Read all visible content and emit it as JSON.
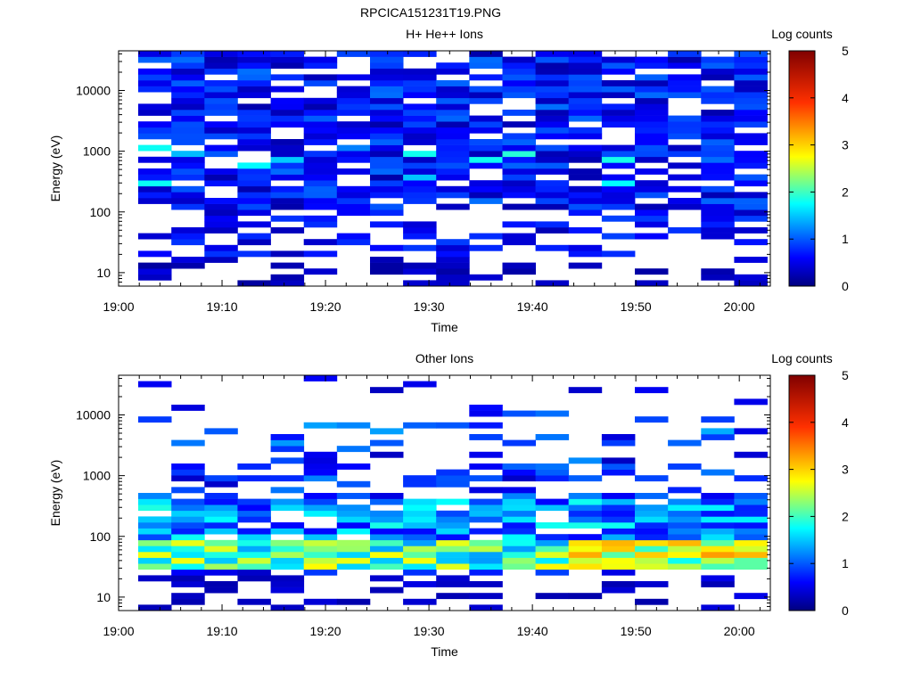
{
  "page_title": "RPCICA151231T19.PNG",
  "chart_data": [
    {
      "type": "heatmap",
      "title": "H+ He++ Ions",
      "xlabel": "Time",
      "ylabel": "Energy (eV)",
      "x_unit": "minutes after 19:00",
      "x_range": [
        0,
        63
      ],
      "x_ticks": [
        {
          "value": 0,
          "label": "19:00"
        },
        {
          "value": 10,
          "label": "19:10"
        },
        {
          "value": 20,
          "label": "19:20"
        },
        {
          "value": 30,
          "label": "19:30"
        },
        {
          "value": 40,
          "label": "19:40"
        },
        {
          "value": 50,
          "label": "19:50"
        },
        {
          "value": 60,
          "label": "20:00"
        }
      ],
      "y_scale": "log",
      "y_range": [
        6,
        45000
      ],
      "y_ticks": [
        {
          "value": 10,
          "label": "10"
        },
        {
          "value": 100,
          "label": "100"
        },
        {
          "value": 1000,
          "label": "1000"
        },
        {
          "value": 10000,
          "label": "10000"
        }
      ],
      "colorbar": {
        "label": "Log counts",
        "min": 0,
        "max": 5,
        "ticks": [
          "0",
          "1",
          "2",
          "3",
          "4",
          "5"
        ]
      },
      "time_bins_start": [
        1.9,
        5.1,
        8.3,
        11.5,
        14.7,
        17.9,
        21.1,
        24.3,
        27.5,
        30.7,
        33.9,
        37.1,
        40.3,
        43.5,
        46.7,
        49.9,
        53.1,
        56.3,
        59.5
      ],
      "time_bin_width": 3.2,
      "energy_bin_count": 40,
      "energy_min": 6,
      "energy_max": 45000,
      "grid": false,
      "counts_description": "broadband low-level counts (0.2-1.5 log counts) from ~100 eV to ~40 keV with gaps; sparse counts below 100 eV; maxima ~2 log counts near 300-1000 eV"
    },
    {
      "type": "heatmap",
      "title": "Other Ions",
      "xlabel": "Time",
      "ylabel": "Energy (eV)",
      "x_unit": "minutes after 19:00",
      "x_range": [
        0,
        63
      ],
      "x_ticks": [
        {
          "value": 0,
          "label": "19:00"
        },
        {
          "value": 10,
          "label": "19:10"
        },
        {
          "value": 20,
          "label": "19:20"
        },
        {
          "value": 30,
          "label": "19:30"
        },
        {
          "value": 40,
          "label": "19:40"
        },
        {
          "value": 50,
          "label": "19:50"
        },
        {
          "value": 60,
          "label": "20:00"
        }
      ],
      "y_scale": "log",
      "y_range": [
        6,
        45000
      ],
      "y_ticks": [
        {
          "value": 10,
          "label": "10"
        },
        {
          "value": 100,
          "label": "100"
        },
        {
          "value": 1000,
          "label": "1000"
        },
        {
          "value": 10000,
          "label": "10000"
        }
      ],
      "colorbar": {
        "label": "Log counts",
        "min": 0,
        "max": 5,
        "ticks": [
          "0",
          "1",
          "2",
          "3",
          "4",
          "5"
        ]
      },
      "time_bins_start": [
        1.9,
        5.1,
        8.3,
        11.5,
        14.7,
        17.9,
        21.1,
        24.3,
        27.5,
        30.7,
        33.9,
        37.1,
        40.3,
        43.5,
        46.7,
        49.9,
        53.1,
        56.3,
        59.5
      ],
      "time_bin_width": 3.2,
      "energy_bin_count": 40,
      "energy_min": 6,
      "energy_max": 45000,
      "grid": false,
      "counts_description": "intense band ~28-80 eV peaking ~3.2 log counts (yellow/orange), moderate counts 80-400 eV, sparse counts above 1 keV"
    }
  ]
}
